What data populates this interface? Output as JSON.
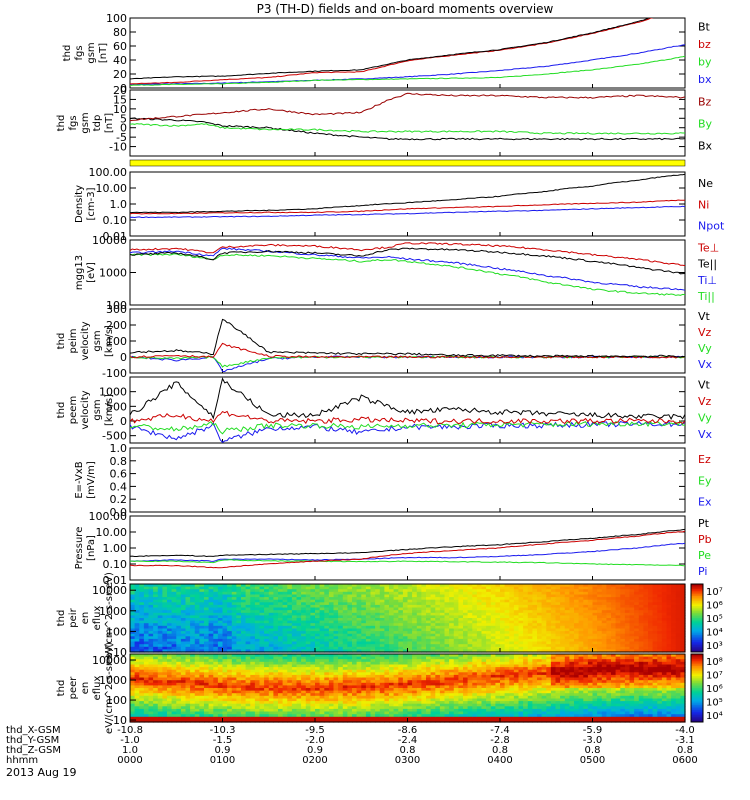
{
  "figure": {
    "title": "P3 (TH-D) fields and on-board moments overview",
    "date": "2013 Aug 19"
  },
  "colors": {
    "black": "#000000",
    "red": "#cc0000",
    "green": "#22dd22",
    "blue": "#1a1aee",
    "yellow": "#ffff00",
    "darkred": "#990000"
  },
  "chart_data": [
    {
      "type": "line",
      "id": "fgs-gsm",
      "ylabel": "thd fgs gsm [nT]",
      "ylim": [
        0,
        100
      ],
      "yticks": [
        "0",
        "20",
        "40",
        "60",
        "80",
        "100"
      ],
      "x": [
        0,
        5,
        10,
        15,
        20,
        25,
        30,
        35,
        40,
        45,
        50,
        55,
        60
      ],
      "series": [
        {
          "name": "Bt",
          "color": "#000000",
          "values": [
            13,
            16,
            17,
            21,
            24,
            26,
            40,
            48,
            55,
            65,
            79,
            95,
            118
          ]
        },
        {
          "name": "bz",
          "color": "#cc0000",
          "values": [
            6,
            8,
            12,
            15,
            22,
            23,
            39,
            47,
            54,
            64,
            78,
            94,
            116
          ]
        },
        {
          "name": "by",
          "color": "#22dd22",
          "values": [
            4,
            5,
            6,
            8,
            11,
            12,
            13,
            14,
            15,
            20,
            26,
            34,
            45
          ]
        },
        {
          "name": "bx",
          "color": "#1a1aee",
          "values": [
            5,
            6,
            7,
            9,
            11,
            13,
            16,
            20,
            25,
            31,
            40,
            50,
            62
          ]
        }
      ]
    },
    {
      "type": "line",
      "id": "fgs-tdp",
      "ylabel": "thd fgs gsm tdp [nT]",
      "ylim": [
        -15,
        20
      ],
      "yticks": [
        "-10",
        "-5",
        "0",
        "5",
        "10",
        "15",
        "20"
      ],
      "x": [
        0,
        5,
        8,
        10,
        15,
        20,
        25,
        28,
        30,
        35,
        40,
        45,
        50,
        55,
        60
      ],
      "series": [
        {
          "name": "Bz",
          "color": "#990000",
          "values": [
            4,
            6,
            7,
            8,
            10,
            7,
            8,
            15,
            18,
            17,
            17,
            16,
            16,
            17,
            16
          ]
        },
        {
          "name": "By",
          "color": "#22dd22",
          "values": [
            2,
            1,
            2,
            0,
            -1,
            -1,
            -2,
            -2,
            -2,
            -2,
            -2,
            -3,
            -3,
            -3,
            -3
          ]
        },
        {
          "name": "Bx",
          "color": "#000000",
          "values": [
            5,
            4,
            3,
            1,
            0,
            -3,
            -5,
            -6,
            -6,
            -6,
            -6,
            -6,
            -6,
            -6,
            -6
          ]
        }
      ]
    },
    {
      "type": "bar",
      "id": "flag-bar",
      "ylabel": "",
      "values": [
        1
      ],
      "color": "#ffff00"
    },
    {
      "type": "line",
      "id": "density",
      "ylabel": "Density [cm-3]",
      "scale": "log",
      "ylim": [
        0.01,
        100
      ],
      "yticks": [
        "0.01",
        "0.10",
        "1.0",
        "10.00",
        "100.00"
      ],
      "x": [
        0,
        5,
        10,
        15,
        20,
        25,
        30,
        35,
        40,
        45,
        50,
        55,
        60
      ],
      "series": [
        {
          "name": "Ne",
          "color": "#000000",
          "values": [
            0.3,
            0.3,
            0.35,
            0.4,
            0.5,
            0.8,
            1.2,
            1.8,
            3,
            6,
            13,
            30,
            70
          ]
        },
        {
          "name": "Ni",
          "color": "#cc0000",
          "values": [
            0.25,
            0.25,
            0.28,
            0.3,
            0.3,
            0.35,
            0.5,
            0.6,
            0.7,
            0.9,
            1.1,
            1.3,
            1.8
          ]
        },
        {
          "name": "Npot",
          "color": "#1a1aee",
          "values": [
            0.15,
            0.15,
            0.16,
            0.17,
            0.2,
            0.22,
            0.25,
            0.3,
            0.35,
            0.4,
            0.5,
            0.6,
            0.7
          ]
        }
      ]
    },
    {
      "type": "line",
      "id": "temperature",
      "ylabel": "mgg13 [eV]",
      "scale": "log",
      "ylim": [
        100,
        10000
      ],
      "yticks": [
        "100",
        "1000",
        "10000"
      ],
      "x": [
        0,
        5,
        9,
        10,
        15,
        20,
        25,
        28,
        30,
        35,
        40,
        45,
        50,
        55,
        60
      ],
      "series": [
        {
          "name": "Te⊥",
          "color": "#cc0000",
          "values": [
            5000,
            5500,
            4000,
            6000,
            7000,
            6500,
            5000,
            6000,
            8000,
            7500,
            6500,
            5000,
            3500,
            2500,
            1600
          ]
        },
        {
          "name": "Te||",
          "color": "#000000",
          "values": [
            3500,
            4000,
            2500,
            4000,
            4500,
            4000,
            3200,
            5000,
            5500,
            5000,
            4200,
            3200,
            2200,
            1400,
            900
          ]
        },
        {
          "name": "Ti⊥",
          "color": "#1a1aee",
          "values": [
            4000,
            4500,
            3200,
            5500,
            4500,
            3500,
            2800,
            3000,
            2600,
            2000,
            1300,
            800,
            500,
            360,
            300
          ]
        },
        {
          "name": "Ti||",
          "color": "#22dd22",
          "values": [
            3500,
            3600,
            2500,
            3500,
            3300,
            2700,
            2200,
            2500,
            2200,
            1500,
            900,
            500,
            300,
            230,
            200
          ]
        }
      ]
    },
    {
      "type": "line",
      "id": "peim-velocity",
      "ylabel": "thd peim velocity gsm [km/s]",
      "ylim": [
        -100,
        300
      ],
      "yticks": [
        "-100",
        "0",
        "100",
        "200",
        "300"
      ],
      "x": [
        0,
        5,
        9,
        10,
        15,
        20,
        25,
        30,
        35,
        40,
        45,
        50,
        55,
        60
      ],
      "series": [
        {
          "name": "Vt",
          "color": "#000000",
          "values": [
            30,
            40,
            20,
            240,
            30,
            25,
            20,
            20,
            10,
            10,
            5,
            5,
            5,
            5
          ]
        },
        {
          "name": "Vz",
          "color": "#cc0000",
          "values": [
            0,
            10,
            0,
            80,
            5,
            0,
            0,
            0,
            0,
            0,
            0,
            0,
            0,
            0
          ]
        },
        {
          "name": "Vy",
          "color": "#22dd22",
          "values": [
            0,
            -10,
            0,
            -60,
            -5,
            0,
            0,
            0,
            0,
            0,
            0,
            0,
            0,
            0
          ]
        },
        {
          "name": "Vx",
          "color": "#1a1aee",
          "values": [
            0,
            -20,
            0,
            -90,
            -10,
            0,
            0,
            0,
            0,
            0,
            0,
            0,
            0,
            0
          ]
        }
      ]
    },
    {
      "type": "line",
      "id": "peem-velocity",
      "ylabel": "thd peem velocity gsm [km/s]",
      "ylim": [
        -750,
        1500
      ],
      "yticks": [
        "-500",
        "0",
        "500",
        "1000"
      ],
      "x": [
        0,
        5,
        9,
        10,
        15,
        20,
        25,
        30,
        35,
        40,
        45,
        50,
        55,
        60
      ],
      "series": [
        {
          "name": "Vt",
          "color": "#000000",
          "values": [
            200,
            1300,
            150,
            1400,
            200,
            200,
            800,
            300,
            400,
            300,
            250,
            200,
            150,
            150
          ]
        },
        {
          "name": "Vz",
          "color": "#cc0000",
          "values": [
            0,
            200,
            0,
            300,
            0,
            0,
            50,
            0,
            0,
            0,
            0,
            0,
            0,
            0
          ]
        },
        {
          "name": "Vy",
          "color": "#22dd22",
          "values": [
            -150,
            -300,
            -100,
            -350,
            -150,
            -150,
            -200,
            -150,
            -150,
            -120,
            -120,
            -100,
            -80,
            -80
          ]
        },
        {
          "name": "Vx",
          "color": "#1a1aee",
          "values": [
            -200,
            -600,
            -150,
            -700,
            -250,
            -200,
            -400,
            -200,
            -200,
            -150,
            -150,
            -120,
            -100,
            -100
          ]
        }
      ]
    },
    {
      "type": "line",
      "id": "exb",
      "ylabel": "E=-VxB [mV/m]",
      "ylim": [
        0,
        1
      ],
      "yticks": [
        "0.0",
        "0.2",
        "0.4",
        "0.6",
        "0.8",
        "1.0"
      ],
      "x": [],
      "series": [
        {
          "name": "Ez",
          "color": "#cc0000",
          "values": []
        },
        {
          "name": "Ey",
          "color": "#22dd22",
          "values": []
        },
        {
          "name": "Ex",
          "color": "#1a1aee",
          "values": []
        }
      ]
    },
    {
      "type": "line",
      "id": "pressure",
      "ylabel": "Pressure [nPa]",
      "scale": "log",
      "ylim": [
        0.01,
        100
      ],
      "yticks": [
        "0.01",
        "0.10",
        "1.00",
        "10.00",
        "100.00"
      ],
      "x": [
        0,
        5,
        9,
        10,
        15,
        20,
        25,
        30,
        35,
        40,
        45,
        50,
        55,
        60
      ],
      "series": [
        {
          "name": "Pt",
          "color": "#000000",
          "values": [
            0.3,
            0.35,
            0.3,
            0.35,
            0.4,
            0.45,
            0.5,
            0.8,
            1.2,
            1.6,
            2.5,
            4,
            7,
            14
          ]
        },
        {
          "name": "Pb",
          "color": "#cc0000",
          "values": [
            0.08,
            0.08,
            0.06,
            0.06,
            0.1,
            0.15,
            0.2,
            0.45,
            0.7,
            1,
            1.8,
            3,
            5.5,
            11
          ]
        },
        {
          "name": "Pe",
          "color": "#22dd22",
          "values": [
            0.15,
            0.15,
            0.12,
            0.18,
            0.16,
            0.15,
            0.14,
            0.15,
            0.14,
            0.13,
            0.12,
            0.1,
            0.09,
            0.08
          ]
        },
        {
          "name": "Pi",
          "color": "#1a1aee",
          "values": [
            0.15,
            0.18,
            0.15,
            0.2,
            0.2,
            0.18,
            0.2,
            0.25,
            0.25,
            0.3,
            0.4,
            0.6,
            1,
            2
          ]
        }
      ]
    },
    {
      "type": "heatmap",
      "id": "peir-spectrogram",
      "ylabel": "thd peir en eflux eV/(cm^2-s-sr-eV)",
      "scale": "log",
      "ylim": [
        10,
        20000
      ],
      "yticks": [
        "10",
        "100",
        "1000",
        "10000"
      ],
      "colorbar_ticks": [
        "10³",
        "10⁴",
        "10⁵",
        "10⁶",
        "10⁷"
      ],
      "colorbar_range": [
        1000,
        10000000
      ]
    },
    {
      "type": "heatmap",
      "id": "peer-spectrogram",
      "ylabel": "thd peer en eflux eV/(cm^2-s-sr-eV)",
      "scale": "log",
      "ylim": [
        8,
        20000
      ],
      "yticks": [
        "10",
        "100",
        "1000",
        "10000"
      ],
      "colorbar_ticks": [
        "10⁴",
        "10⁵",
        "10⁶",
        "10⁷",
        "10⁸"
      ],
      "colorbar_range": [
        10000,
        100000000
      ]
    }
  ],
  "xaxis": {
    "row_labels": [
      "thd_X-GSM",
      "thd_Y-GSM",
      "thd_Z-GSM",
      "hhmm"
    ],
    "ticks": [
      {
        "minutes": 0,
        "values": [
          "-10.8",
          "-1.0",
          "1.0",
          "0000"
        ]
      },
      {
        "minutes": 10,
        "values": [
          "-10.3",
          "-1.5",
          "0.9",
          "0100"
        ]
      },
      {
        "minutes": 20,
        "values": [
          "-9.5",
          "-2.0",
          "0.9",
          "0200"
        ]
      },
      {
        "minutes": 30,
        "values": [
          "-8.6",
          "-2.4",
          "0.8",
          "0300"
        ]
      },
      {
        "minutes": 40,
        "values": [
          "-7.4",
          "-2.8",
          "0.8",
          "0400"
        ]
      },
      {
        "minutes": 50,
        "values": [
          "-5.9",
          "-3.0",
          "0.8",
          "0500"
        ]
      },
      {
        "minutes": 60,
        "values": [
          "-4.0",
          "-3.1",
          "0.8",
          "0600"
        ]
      }
    ]
  }
}
